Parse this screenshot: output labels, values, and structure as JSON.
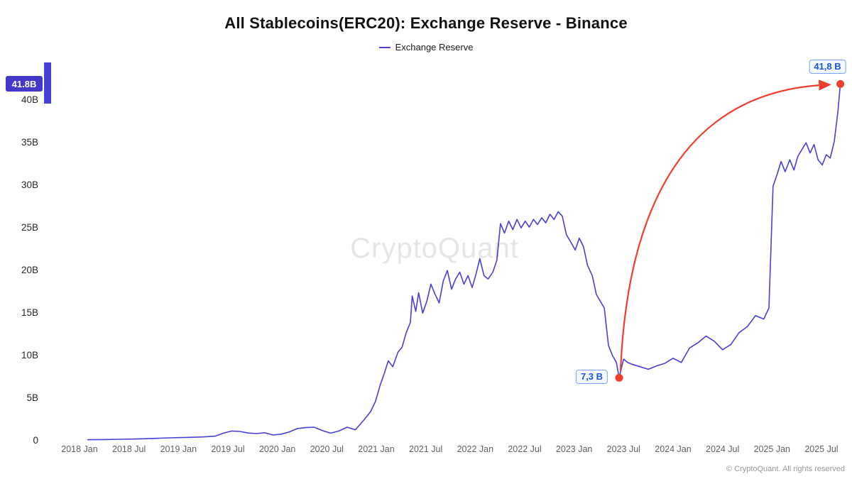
{
  "title": "All Stablecoins(ERC20): Exchange Reserve - Binance",
  "legend": {
    "label": "Exchange Reserve"
  },
  "watermark": "CryptoQuant",
  "footer": "© CryptoQuant. All rights reserved",
  "badge": {
    "value": "41.8B"
  },
  "annotations": {
    "low": {
      "label": "7,3 B",
      "date": "2023-06-15",
      "value": 7.3
    },
    "high": {
      "label": "41,8 B",
      "date": "2025-09-10",
      "value": 41.8
    }
  },
  "colors": {
    "line": "#4740D6",
    "badge_bg": "#4338CA",
    "annotation_text": "#1A56DB",
    "annotation_border": "#7AA5F8",
    "marker": "#EF3E2B",
    "axis_text": "#26262b"
  },
  "chart_data": {
    "type": "line",
    "title": "All Stablecoins(ERC20): Exchange Reserve - Binance",
    "xlabel": "",
    "ylabel": "",
    "ylim": [
      0,
      44
    ],
    "grid": false,
    "legend_position": "top-center",
    "y_ticks": [
      "0",
      "5B",
      "10B",
      "15B",
      "20B",
      "25B",
      "30B",
      "35B",
      "40B"
    ],
    "y_tick_values": [
      0,
      5,
      10,
      15,
      20,
      25,
      30,
      35,
      40
    ],
    "x_tick_labels": [
      "2018 Jan",
      "2018 Jul",
      "2019 Jan",
      "2019 Jul",
      "2020 Jan",
      "2020 Jul",
      "2021 Jan",
      "2021 Jul",
      "2022 Jan",
      "2022 Jul",
      "2023 Jan",
      "2023 Jul",
      "2024 Jan",
      "2024 Jul",
      "2025 Jan",
      "2025 Jul"
    ],
    "series": [
      {
        "name": "Exchange Reserve",
        "points": [
          [
            "2018-02-01",
            0.03
          ],
          [
            "2018-04-01",
            0.05
          ],
          [
            "2018-06-01",
            0.08
          ],
          [
            "2018-08-01",
            0.12
          ],
          [
            "2018-10-01",
            0.18
          ],
          [
            "2018-12-01",
            0.25
          ],
          [
            "2019-02-01",
            0.3
          ],
          [
            "2019-04-01",
            0.36
          ],
          [
            "2019-05-15",
            0.45
          ],
          [
            "2019-06-15",
            0.8
          ],
          [
            "2019-07-15",
            1.05
          ],
          [
            "2019-08-15",
            1.0
          ],
          [
            "2019-09-15",
            0.82
          ],
          [
            "2019-10-15",
            0.75
          ],
          [
            "2019-11-15",
            0.85
          ],
          [
            "2019-12-15",
            0.58
          ],
          [
            "2020-01-15",
            0.68
          ],
          [
            "2020-02-15",
            0.95
          ],
          [
            "2020-03-15",
            1.35
          ],
          [
            "2020-04-15",
            1.45
          ],
          [
            "2020-05-15",
            1.5
          ],
          [
            "2020-06-15",
            1.1
          ],
          [
            "2020-07-15",
            0.8
          ],
          [
            "2020-08-15",
            1.05
          ],
          [
            "2020-09-15",
            1.5
          ],
          [
            "2020-10-15",
            1.2
          ],
          [
            "2020-11-15",
            2.3
          ],
          [
            "2020-12-10",
            3.3
          ],
          [
            "2020-12-28",
            4.5
          ],
          [
            "2021-01-15",
            6.4
          ],
          [
            "2021-02-01",
            7.9
          ],
          [
            "2021-02-15",
            9.3
          ],
          [
            "2021-03-01",
            8.6
          ],
          [
            "2021-03-20",
            10.3
          ],
          [
            "2021-04-05",
            10.9
          ],
          [
            "2021-04-20",
            12.6
          ],
          [
            "2021-05-05",
            13.8
          ],
          [
            "2021-05-12",
            16.9
          ],
          [
            "2021-05-25",
            15.1
          ],
          [
            "2021-06-05",
            17.3
          ],
          [
            "2021-06-20",
            14.9
          ],
          [
            "2021-07-05",
            16.3
          ],
          [
            "2021-07-20",
            18.3
          ],
          [
            "2021-08-05",
            17.1
          ],
          [
            "2021-08-20",
            16.1
          ],
          [
            "2021-09-05",
            18.7
          ],
          [
            "2021-09-20",
            19.9
          ],
          [
            "2021-10-05",
            17.7
          ],
          [
            "2021-10-20",
            18.9
          ],
          [
            "2021-11-05",
            19.7
          ],
          [
            "2021-11-20",
            18.3
          ],
          [
            "2021-12-05",
            19.3
          ],
          [
            "2021-12-20",
            17.9
          ],
          [
            "2022-01-05",
            19.6
          ],
          [
            "2022-01-18",
            21.3
          ],
          [
            "2022-02-03",
            19.3
          ],
          [
            "2022-02-18",
            18.9
          ],
          [
            "2022-03-05",
            19.7
          ],
          [
            "2022-03-20",
            21.1
          ],
          [
            "2022-04-03",
            25.4
          ],
          [
            "2022-04-18",
            24.3
          ],
          [
            "2022-05-03",
            25.7
          ],
          [
            "2022-05-18",
            24.7
          ],
          [
            "2022-06-03",
            25.9
          ],
          [
            "2022-06-18",
            24.9
          ],
          [
            "2022-07-03",
            25.7
          ],
          [
            "2022-07-18",
            25.0
          ],
          [
            "2022-08-03",
            25.9
          ],
          [
            "2022-08-18",
            25.3
          ],
          [
            "2022-09-03",
            26.1
          ],
          [
            "2022-09-18",
            25.5
          ],
          [
            "2022-10-03",
            26.5
          ],
          [
            "2022-10-18",
            25.9
          ],
          [
            "2022-11-03",
            26.8
          ],
          [
            "2022-11-18",
            26.3
          ],
          [
            "2022-12-03",
            24.1
          ],
          [
            "2022-12-18",
            23.3
          ],
          [
            "2023-01-05",
            22.3
          ],
          [
            "2023-01-20",
            23.7
          ],
          [
            "2023-02-05",
            22.7
          ],
          [
            "2023-02-20",
            20.5
          ],
          [
            "2023-03-07",
            19.3
          ],
          [
            "2023-03-22",
            17.1
          ],
          [
            "2023-04-06",
            16.3
          ],
          [
            "2023-04-21",
            15.5
          ],
          [
            "2023-05-06",
            11.1
          ],
          [
            "2023-05-21",
            9.9
          ],
          [
            "2023-06-05",
            9.1
          ],
          [
            "2023-06-15",
            7.3
          ],
          [
            "2023-07-01",
            9.5
          ],
          [
            "2023-07-16",
            9.1
          ],
          [
            "2023-08-01",
            8.9
          ],
          [
            "2023-09-01",
            8.6
          ],
          [
            "2023-10-01",
            8.3
          ],
          [
            "2023-11-01",
            8.7
          ],
          [
            "2023-12-01",
            9.0
          ],
          [
            "2024-01-01",
            9.6
          ],
          [
            "2024-02-01",
            9.1
          ],
          [
            "2024-03-01",
            10.8
          ],
          [
            "2024-04-01",
            11.4
          ],
          [
            "2024-05-01",
            12.2
          ],
          [
            "2024-06-01",
            11.6
          ],
          [
            "2024-07-01",
            10.6
          ],
          [
            "2024-08-01",
            11.2
          ],
          [
            "2024-09-01",
            12.6
          ],
          [
            "2024-10-01",
            13.3
          ],
          [
            "2024-11-01",
            14.6
          ],
          [
            "2024-12-01",
            14.2
          ],
          [
            "2024-12-20",
            15.5
          ],
          [
            "2025-01-05",
            29.8
          ],
          [
            "2025-01-20",
            31.2
          ],
          [
            "2025-02-04",
            32.7
          ],
          [
            "2025-02-19",
            31.5
          ],
          [
            "2025-03-06",
            32.9
          ],
          [
            "2025-03-21",
            31.7
          ],
          [
            "2025-04-05",
            33.3
          ],
          [
            "2025-04-20",
            34.1
          ],
          [
            "2025-05-05",
            34.9
          ],
          [
            "2025-05-20",
            33.7
          ],
          [
            "2025-06-04",
            34.7
          ],
          [
            "2025-06-19",
            32.9
          ],
          [
            "2025-07-04",
            32.3
          ],
          [
            "2025-07-19",
            33.5
          ],
          [
            "2025-08-03",
            33.1
          ],
          [
            "2025-08-18",
            35.1
          ],
          [
            "2025-09-01",
            38.6
          ],
          [
            "2025-09-10",
            41.8
          ]
        ]
      }
    ]
  }
}
